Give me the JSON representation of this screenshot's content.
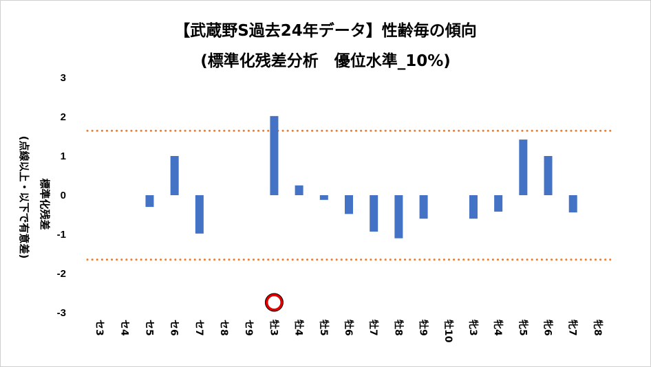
{
  "chart_data": {
    "type": "bar",
    "title": "【武蔵野S過去24年データ】性齢毎の傾向",
    "subtitle": "(標準化残差分析　優位水準_10%)",
    "ylabel": "標準化残差",
    "ylabel2": "(点線以上・以下で有意差)",
    "ylim": [
      -3,
      3
    ],
    "yticks": [
      3,
      2,
      1,
      0,
      -1,
      -2,
      -3
    ],
    "threshold": 1.645,
    "categories": [
      "セ3",
      "セ4",
      "セ5",
      "セ6",
      "セ7",
      "セ8",
      "セ9",
      "牡3",
      "牡4",
      "牡5",
      "牡6",
      "牡7",
      "牡8",
      "牡9",
      "牡10",
      "牝3",
      "牝4",
      "牝5",
      "牝6",
      "牝7",
      "牝8"
    ],
    "values": [
      0,
      0,
      -0.3,
      1.0,
      -0.98,
      0,
      0,
      2.02,
      0.25,
      -0.12,
      -0.48,
      -0.93,
      -1.1,
      -0.6,
      0,
      -0.6,
      -0.42,
      1.42,
      1.0,
      -0.44,
      0
    ],
    "highlight_category": "牡3",
    "colors": {
      "bar": "#4472C4",
      "threshold": "#ED7D31",
      "marker_ring": "#E00000"
    },
    "grid": false
  }
}
